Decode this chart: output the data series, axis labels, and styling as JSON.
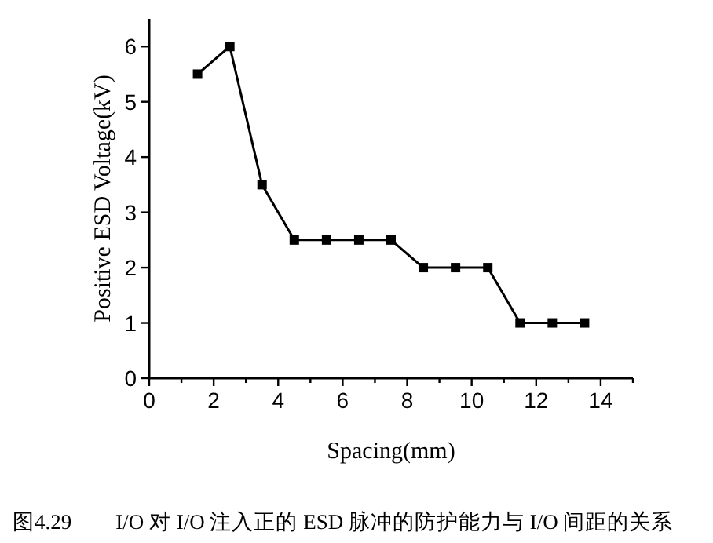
{
  "chart_data": {
    "type": "line",
    "xlabel": "Spacing(mm)",
    "ylabel": "Positive ESD Voltage(kV)",
    "x": [
      1.5,
      2.5,
      3.5,
      4.5,
      5.5,
      6.5,
      7.5,
      8.5,
      9.5,
      10.5,
      11.5,
      12.5,
      13.5
    ],
    "series": [
      {
        "color": "#000000",
        "values": [
          5.5,
          6,
          3.5,
          2.5,
          2.5,
          2.5,
          2.5,
          2,
          2,
          2,
          1,
          1,
          1
        ]
      }
    ],
    "marker": "square",
    "line_style": "solid",
    "grid": false,
    "xlim": [
      0,
      15
    ],
    "ylim": [
      0,
      6.5
    ],
    "xticks": [
      0,
      {
        "value": 1,
        "label": null
      },
      2,
      {
        "value": 3,
        "label": null
      },
      4,
      {
        "value": 5,
        "label": null
      },
      6,
      {
        "value": 7,
        "label": null
      },
      8,
      {
        "value": 9,
        "label": null
      },
      10,
      {
        "value": 11,
        "label": null
      },
      12,
      {
        "value": 13,
        "label": null
      },
      14,
      {
        "value": 15,
        "label": null
      }
    ],
    "yticks": [
      0,
      1,
      2,
      3,
      4,
      5,
      6
    ],
    "annotations": [
      "图4.29　　I/O 对 I/O 注入正的 ESD 脉冲的防护能力与 I/O 间距的关系"
    ]
  }
}
